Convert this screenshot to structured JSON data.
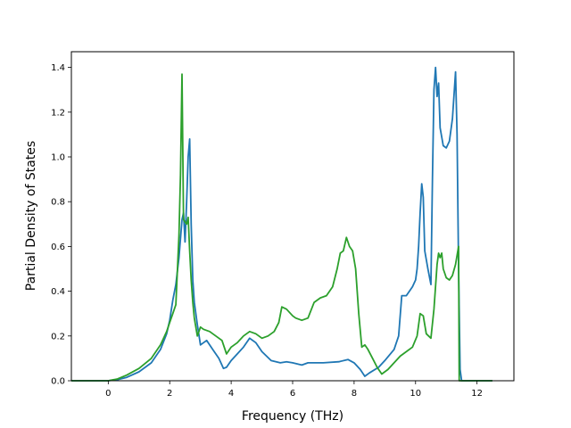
{
  "chart_data": {
    "type": "line",
    "xlabel": "Frequency (THz)",
    "ylabel": "Partial Density of States",
    "xlim": [
      -1.2,
      13.2
    ],
    "ylim": [
      0,
      1.47
    ],
    "xticks": [
      0,
      2,
      4,
      6,
      8,
      10,
      12
    ],
    "yticks": [
      0.0,
      0.2,
      0.4,
      0.6,
      0.8,
      1.0,
      1.2,
      1.4
    ],
    "xtick_labels": [
      "0",
      "2",
      "4",
      "6",
      "8",
      "10",
      "12"
    ],
    "ytick_labels": [
      "0.0",
      "0.2",
      "0.4",
      "0.6",
      "0.8",
      "1.0",
      "1.2",
      "1.4"
    ],
    "grid": false,
    "series": [
      {
        "color": "#1f77b4",
        "x": [
          -1.2,
          0,
          0.3,
          0.6,
          1.0,
          1.4,
          1.7,
          1.9,
          2.0,
          2.1,
          2.2,
          2.3,
          2.4,
          2.45,
          2.5,
          2.55,
          2.6,
          2.65,
          2.7,
          2.75,
          2.8,
          2.9,
          3.0,
          3.2,
          3.4,
          3.6,
          3.75,
          3.85,
          4.0,
          4.2,
          4.4,
          4.6,
          4.8,
          5.0,
          5.3,
          5.6,
          5.8,
          6.0,
          6.3,
          6.5,
          7.0,
          7.5,
          7.8,
          8.0,
          8.2,
          8.35,
          8.5,
          8.8,
          9.0,
          9.3,
          9.45,
          9.55,
          9.7,
          9.9,
          10.0,
          10.05,
          10.1,
          10.15,
          10.2,
          10.25,
          10.3,
          10.4,
          10.5,
          10.55,
          10.6,
          10.65,
          10.7,
          10.75,
          10.8,
          10.9,
          11.0,
          11.1,
          11.2,
          11.3,
          11.35,
          11.4,
          11.45,
          11.5,
          12.5
        ],
        "y": [
          0,
          0,
          0.005,
          0.015,
          0.04,
          0.08,
          0.14,
          0.21,
          0.27,
          0.36,
          0.43,
          0.55,
          0.72,
          0.75,
          0.62,
          0.8,
          1.0,
          1.08,
          0.7,
          0.45,
          0.35,
          0.25,
          0.16,
          0.18,
          0.14,
          0.1,
          0.055,
          0.06,
          0.09,
          0.12,
          0.15,
          0.19,
          0.17,
          0.13,
          0.09,
          0.08,
          0.085,
          0.08,
          0.07,
          0.08,
          0.08,
          0.085,
          0.095,
          0.08,
          0.05,
          0.02,
          0.035,
          0.06,
          0.09,
          0.14,
          0.2,
          0.38,
          0.38,
          0.42,
          0.45,
          0.5,
          0.6,
          0.75,
          0.88,
          0.82,
          0.58,
          0.5,
          0.43,
          0.9,
          1.3,
          1.4,
          1.27,
          1.33,
          1.13,
          1.05,
          1.04,
          1.07,
          1.17,
          1.38,
          1.1,
          0.5,
          0.05,
          0,
          0
        ]
      },
      {
        "color": "#2ca02c",
        "x": [
          -1.2,
          0,
          0.3,
          0.6,
          1.0,
          1.4,
          1.7,
          1.9,
          2.0,
          2.1,
          2.2,
          2.3,
          2.35,
          2.4,
          2.45,
          2.5,
          2.55,
          2.6,
          2.65,
          2.7,
          2.75,
          2.8,
          2.9,
          3.0,
          3.1,
          3.3,
          3.5,
          3.7,
          3.85,
          4.0,
          4.2,
          4.4,
          4.6,
          4.8,
          5.0,
          5.2,
          5.4,
          5.55,
          5.65,
          5.8,
          6.0,
          6.1,
          6.3,
          6.5,
          6.7,
          6.9,
          7.1,
          7.3,
          7.45,
          7.55,
          7.65,
          7.75,
          7.85,
          7.95,
          8.05,
          8.15,
          8.25,
          8.35,
          8.45,
          8.6,
          8.75,
          8.9,
          9.1,
          9.3,
          9.5,
          9.7,
          9.9,
          10.05,
          10.15,
          10.25,
          10.35,
          10.5,
          10.6,
          10.7,
          10.75,
          10.8,
          10.85,
          10.9,
          11.0,
          11.1,
          11.2,
          11.3,
          11.4,
          11.42,
          11.5,
          12.5
        ],
        "y": [
          0,
          0,
          0.008,
          0.025,
          0.055,
          0.1,
          0.16,
          0.22,
          0.26,
          0.3,
          0.34,
          0.65,
          0.92,
          1.37,
          0.72,
          0.71,
          0.7,
          0.73,
          0.58,
          0.45,
          0.35,
          0.28,
          0.2,
          0.24,
          0.23,
          0.22,
          0.2,
          0.18,
          0.12,
          0.15,
          0.17,
          0.2,
          0.22,
          0.21,
          0.19,
          0.2,
          0.22,
          0.26,
          0.33,
          0.32,
          0.29,
          0.28,
          0.27,
          0.28,
          0.35,
          0.37,
          0.38,
          0.42,
          0.5,
          0.57,
          0.58,
          0.64,
          0.6,
          0.58,
          0.5,
          0.3,
          0.15,
          0.16,
          0.14,
          0.1,
          0.06,
          0.03,
          0.05,
          0.08,
          0.11,
          0.13,
          0.15,
          0.2,
          0.3,
          0.29,
          0.21,
          0.19,
          0.32,
          0.52,
          0.57,
          0.55,
          0.57,
          0.5,
          0.46,
          0.45,
          0.47,
          0.52,
          0.6,
          0.0,
          0,
          0
        ]
      }
    ]
  }
}
